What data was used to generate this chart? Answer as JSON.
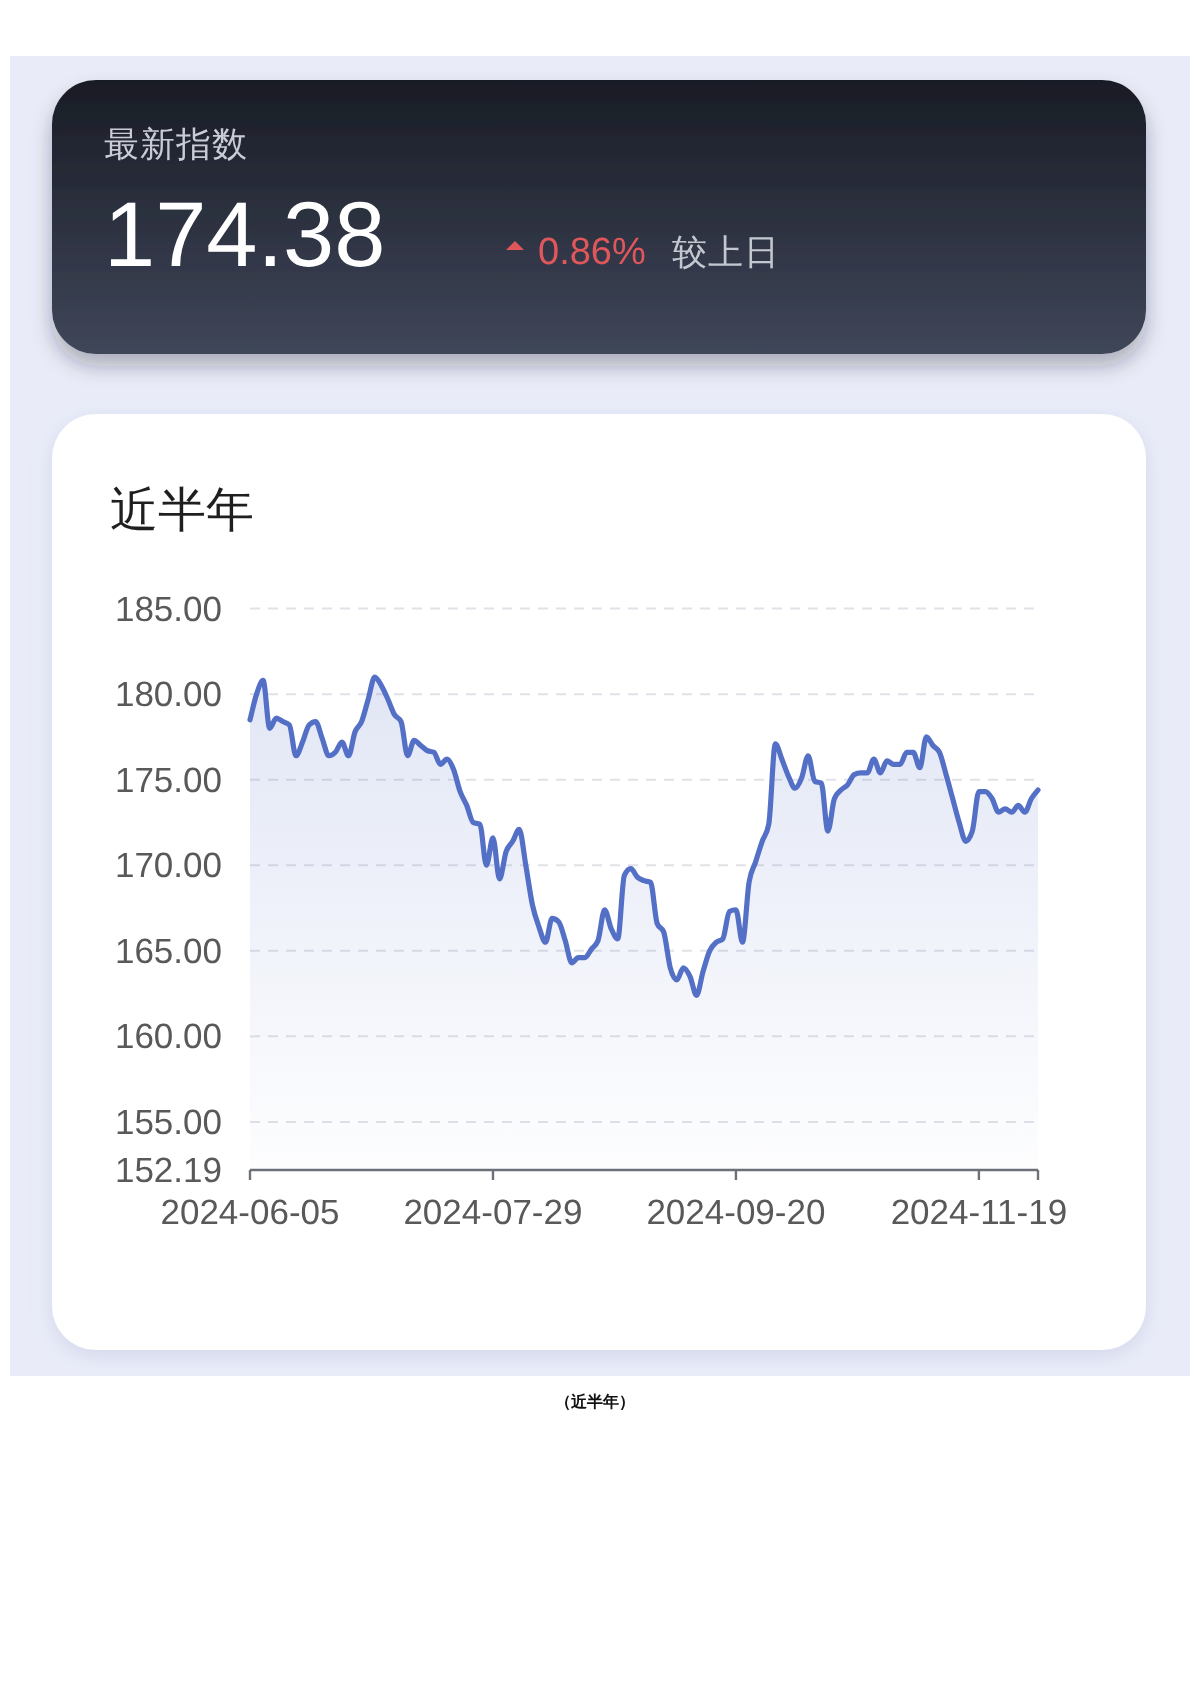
{
  "chart_data": [
    {
      "type": "other",
      "title": "最新指数",
      "annotations": [
        "174.38",
        "0.86%",
        "较上日"
      ]
    },
    {
      "type": "area",
      "title": "近半年",
      "categories": [
        "2024-06-05",
        null,
        null,
        null,
        null,
        null,
        null,
        null,
        null,
        null,
        null,
        null,
        null,
        null,
        null,
        null,
        null,
        null,
        null,
        null,
        null,
        null,
        null,
        null,
        null,
        null,
        null,
        null,
        null,
        null,
        null,
        null,
        null,
        null,
        null,
        null,
        null,
        "2024-07-29",
        null,
        null,
        null,
        null,
        null,
        null,
        null,
        null,
        null,
        null,
        null,
        null,
        null,
        null,
        null,
        null,
        null,
        null,
        null,
        null,
        null,
        null,
        null,
        null,
        null,
        null,
        null,
        null,
        null,
        null,
        null,
        null,
        null,
        null,
        null,
        null,
        "2024-09-20",
        null,
        null,
        null,
        null,
        null,
        null,
        null,
        null,
        null,
        null,
        null,
        null,
        null,
        null,
        null,
        null,
        null,
        null,
        null,
        null,
        null,
        null,
        null,
        null,
        null,
        null,
        null,
        null,
        null,
        null,
        null,
        null,
        null,
        null,
        null,
        null,
        "2024-11-19",
        null,
        null,
        null,
        null,
        null,
        null,
        null,
        null,
        null
      ],
      "series": [
        {
          "color": "#5470c6",
          "values": [
            178.5,
            180.0,
            180.8,
            178.0,
            178.6,
            178.4,
            178.2,
            176.4,
            177.2,
            178.2,
            178.4,
            177.4,
            176.4,
            176.6,
            177.2,
            176.4,
            177.8,
            178.4,
            179.7,
            181.0,
            180.5,
            179.7,
            178.8,
            178.4,
            176.4,
            177.3,
            177.0,
            176.7,
            176.6,
            175.9,
            176.2,
            175.6,
            174.3,
            173.5,
            172.5,
            172.4,
            170.0,
            171.6,
            169.2,
            170.8,
            171.4,
            172.1,
            170.0,
            167.7,
            166.4,
            165.5,
            166.9,
            166.7,
            165.6,
            164.3,
            164.6,
            164.6,
            165.1,
            165.6,
            167.4,
            166.3,
            165.7,
            169.4,
            169.8,
            169.3,
            169.1,
            169.0,
            166.6,
            166.1,
            164.0,
            163.3,
            164.0,
            163.5,
            162.4,
            163.8,
            165.0,
            165.5,
            165.7,
            167.3,
            167.4,
            165.5,
            169.0,
            170.2,
            171.4,
            172.4,
            177.1,
            176.2,
            175.2,
            174.5,
            175.1,
            176.4,
            174.9,
            174.8,
            172.0,
            173.9,
            174.4,
            174.7,
            175.3,
            175.4,
            175.4,
            176.2,
            175.4,
            176.1,
            175.9,
            175.9,
            176.6,
            176.6,
            175.7,
            177.5,
            177.0,
            176.6,
            175.3,
            173.9,
            172.5,
            171.4,
            172.0,
            174.3,
            174.3,
            173.9,
            173.1,
            173.3,
            173.1,
            173.5,
            173.1,
            173.9,
            174.4
          ]
        }
      ],
      "ylim": [
        152.19,
        185
      ],
      "yticks": [
        {
          "value": 152.19,
          "label": "152.19"
        },
        {
          "value": 155,
          "label": "155.00"
        },
        {
          "value": 160,
          "label": "160.00"
        },
        {
          "value": 165,
          "label": "165.00"
        },
        {
          "value": 170,
          "label": "170.00"
        },
        {
          "value": 175,
          "label": "175.00"
        },
        {
          "value": 180,
          "label": "180.00"
        },
        {
          "value": 185,
          "label": "185.00"
        }
      ],
      "grid": "y",
      "annotations": [
        "（近半年）"
      ]
    }
  ]
}
